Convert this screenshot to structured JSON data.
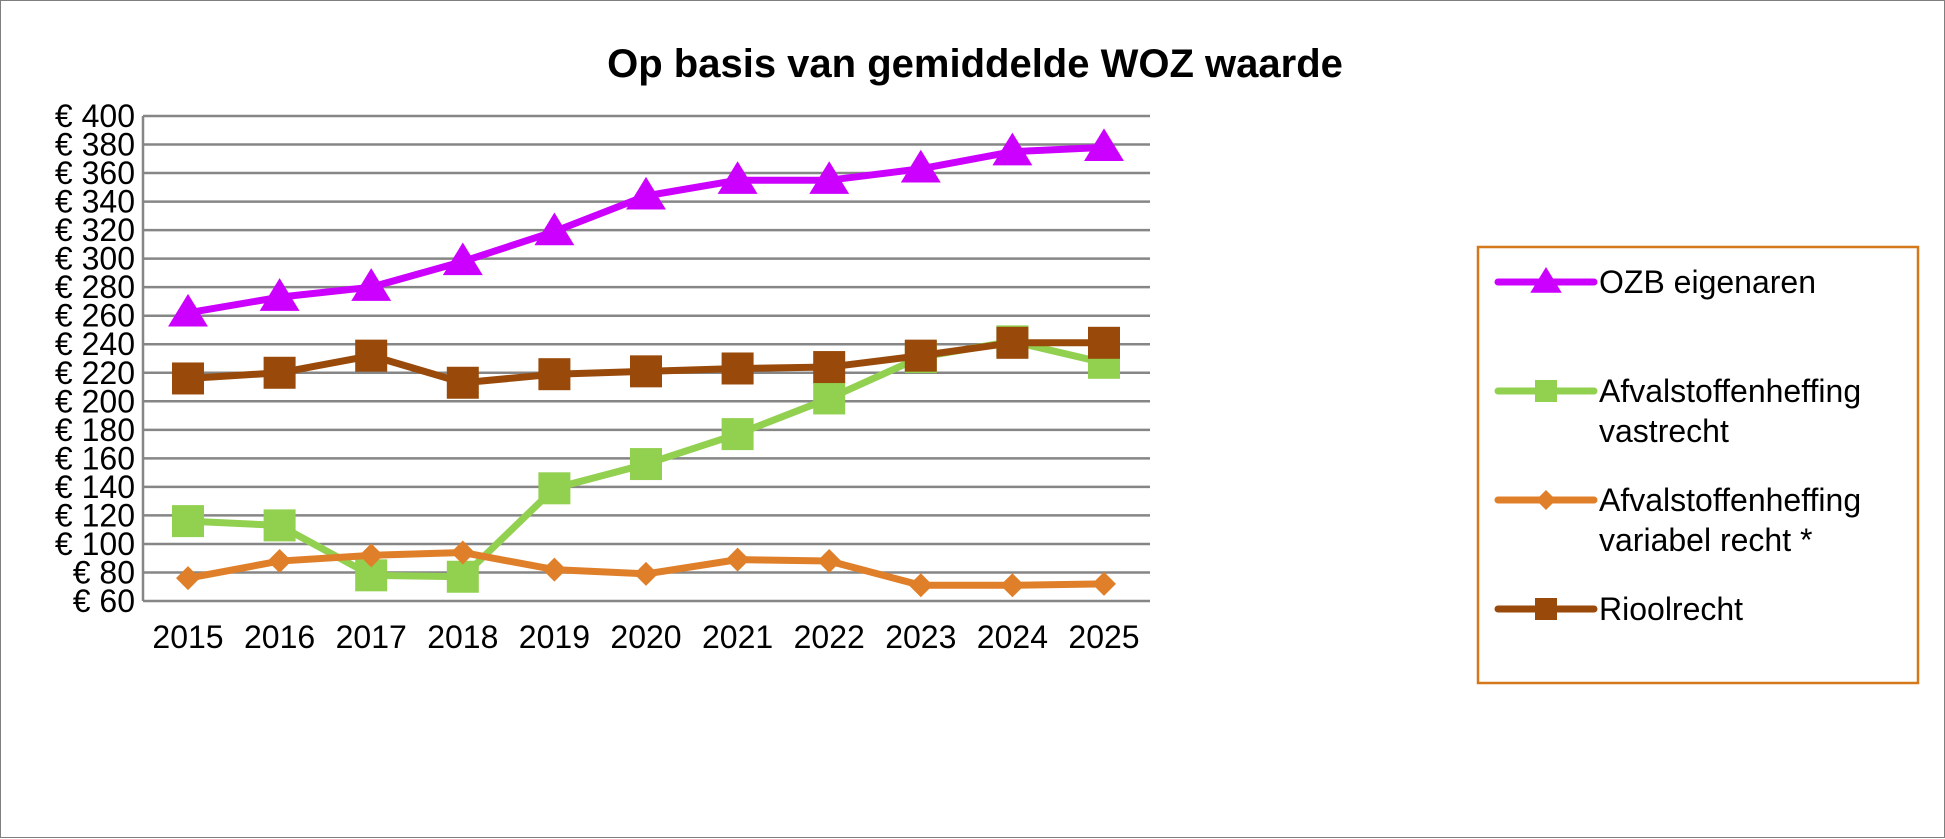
{
  "chart_data": {
    "type": "line",
    "title": "Op basis van gemiddelde WOZ waarde",
    "xlabel": "",
    "ylabel": "",
    "ylim": [
      60,
      400
    ],
    "y_step": 20,
    "y_tick_labels": [
      "€ 60",
      "€ 80",
      "€ 100",
      "€ 120",
      "€ 140",
      "€ 160",
      "€ 180",
      "€ 200",
      "€ 220",
      "€ 240",
      "€ 260",
      "€ 280",
      "€ 300",
      "€ 320",
      "€ 340",
      "€ 360",
      "€ 380",
      "€ 400"
    ],
    "categories": [
      "2015",
      "2016",
      "2017",
      "2018",
      "2019",
      "2020",
      "2021",
      "2022",
      "2023",
      "2024",
      "2025"
    ],
    "grid": true,
    "legend_position": "right",
    "legend_border_color": "#d5781a",
    "series": [
      {
        "name": "OZB eigenaren",
        "color": "#cc00ff",
        "marker": "triangle",
        "values": [
          262,
          273,
          280,
          298,
          319,
          344,
          355,
          355,
          363,
          375,
          378
        ]
      },
      {
        "name": "Afvalstoffenheffing vastrecht",
        "legend_lines": [
          "Afvalstoffenheffing",
          "vastrecht"
        ],
        "color": "#92d050",
        "marker": "square",
        "values": [
          116,
          113,
          78,
          77,
          139,
          156,
          177,
          202,
          231,
          242,
          227
        ]
      },
      {
        "name": "Afvalstoffenheffing variabel recht *",
        "legend_lines": [
          "Afvalstoffenheffing",
          "variabel recht *"
        ],
        "color": "#e07f2a",
        "marker": "diamond",
        "values": [
          76,
          88,
          92,
          94,
          82,
          79,
          89,
          88,
          71,
          71,
          72
        ]
      },
      {
        "name": "Rioolrecht",
        "color": "#994a0a",
        "marker": "square",
        "values": [
          216,
          220,
          232,
          213,
          219,
          221,
          223,
          224,
          232,
          241,
          241
        ]
      }
    ]
  }
}
